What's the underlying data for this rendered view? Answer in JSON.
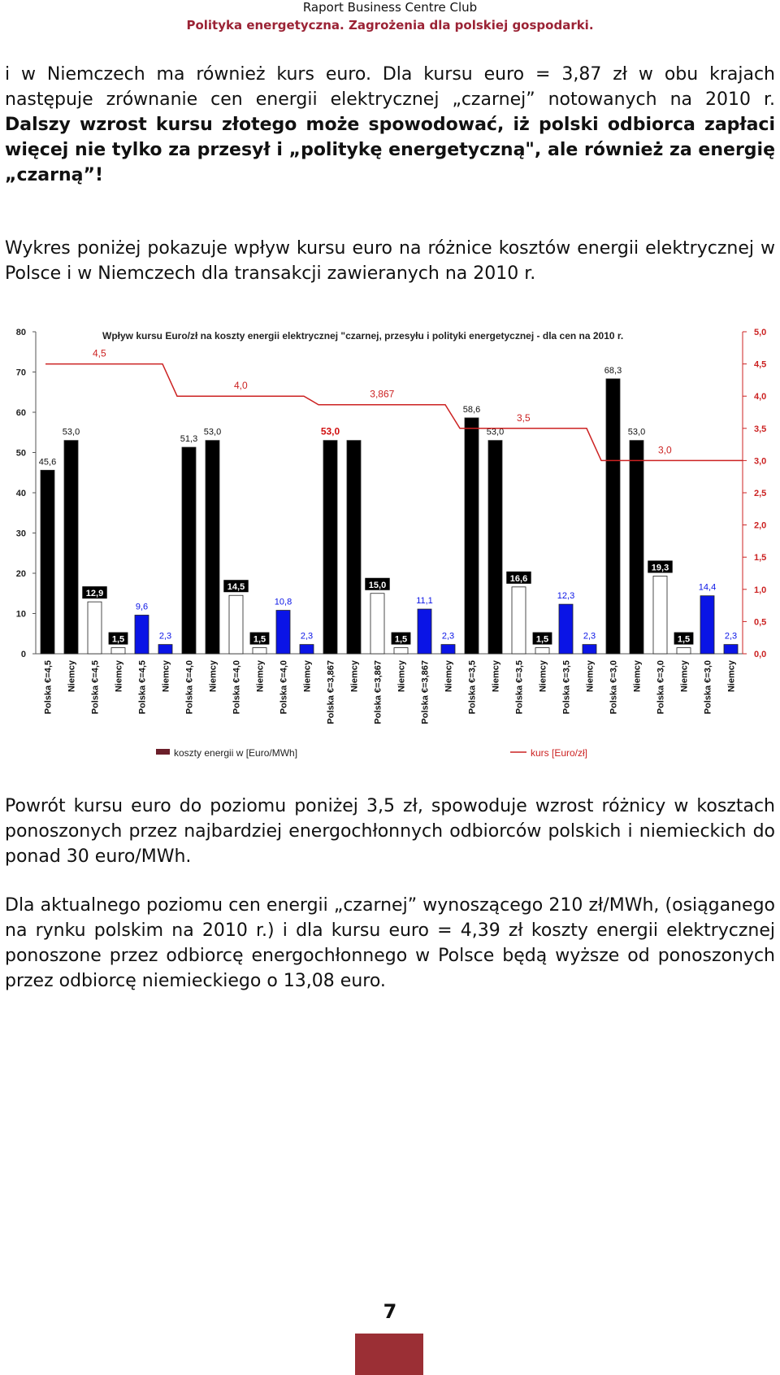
{
  "header": {
    "line1": "Raport Business Centre Club",
    "line2": "Polityka energetyczna. Zagrożenia dla polskiej gospodarki."
  },
  "paragraphs": {
    "p1_normal": "i w Niemczech ma również kurs euro. Dla kursu euro = 3,87 zł w obu krajach następuje zrównanie cen energii elektrycznej „czarnej” notowanych na 2010 r. ",
    "p1_bold": "Dalszy wzrost kursu złotego może spowodować, iż polski odbiorca zapłaci więcej nie tylko za przesył i „politykę energetyczną\", ale również za energię „czarną”!",
    "p2": "Wykres poniżej pokazuje wpływ kursu euro na różnice kosztów energii elektrycznej w Polsce i w Niemczech dla transakcji zawieranych na 2010 r.",
    "p3": "Powrót kursu euro do poziomu poniżej 3,5 zł, spowoduje wzrost różnicy w kosztach ponoszonych przez najbardziej energochłonnych odbiorców polskich i niemieckich do ponad 30 euro/MWh.",
    "p4": "Dla aktualnego poziomu cen energii „czarnej” wynoszącego 210 zł/MWh, (osiąganego na rynku polskim na 2010 r.) i dla kursu euro = 4,39 zł koszty energii elektrycznej ponoszone przez odbiorcę energochłonnego w Polsce będą wyższe od ponoszonych przez odbiorcę niemieckiego o 13,08 euro."
  },
  "page_number": "7",
  "colors": {
    "header_red": "#9b2335",
    "bar_black": "#000000",
    "bar_white": "#ffffff",
    "bar_blue": "#0a14e6",
    "line_red": "#cc2222",
    "footer_block": "#9b2f35"
  },
  "chart_data": {
    "type": "bar",
    "title": "Wpływ kursu Euro/zł na koszty energii elektrycznej \"czarnej, przesyłu i polityki energetycznej - dla cen na 2010 r.",
    "ylim": [
      0,
      80
    ],
    "yticks": [
      "0",
      "10",
      "20",
      "30",
      "40",
      "50",
      "60",
      "70",
      "80"
    ],
    "y2lim": [
      0,
      5
    ],
    "y2ticks": [
      "0,0",
      "0,5",
      "1,0",
      "1,5",
      "2,0",
      "2,5",
      "3,0",
      "3,5",
      "4,0",
      "4,5",
      "5,0"
    ],
    "categories": [
      "Polska €=4,5",
      "Niemcy",
      "Polska €=4,5",
      "Niemcy",
      "Polska €=4,5",
      "Niemcy",
      "Polska €=4,0",
      "Niemcy",
      "Polska €=4,0",
      "Niemcy",
      "Polska €=4,0",
      "Niemcy",
      "Polska €=3,867",
      "Niemcy",
      "Polska €=3,867",
      "Niemcy",
      "Polska €=3,867",
      "Niemcy",
      "Polska €=3,5",
      "Niemcy",
      "Polska €=3,5",
      "Niemcy",
      "Polska €=3,5",
      "Niemcy",
      "Polska €=3,0",
      "Niemcy",
      "Polska €=3,0",
      "Niemcy",
      "Polska €=3,0",
      "Niemcy"
    ],
    "values": [
      45.6,
      53.0,
      12.9,
      1.5,
      9.6,
      2.3,
      51.3,
      53.0,
      14.5,
      1.5,
      10.8,
      2.3,
      53.0,
      53.0,
      15.0,
      1.5,
      11.1,
      2.3,
      58.6,
      53.0,
      16.6,
      1.5,
      12.3,
      2.3,
      68.3,
      53.0,
      19.3,
      1.5,
      14.4,
      2.3
    ],
    "value_labels": [
      "45,6",
      "53,0",
      "12,9",
      "1,5",
      "9,6",
      "2,3",
      "51,3",
      "53,0",
      "14,5",
      "1,5",
      "10,8",
      "2,3",
      "53,0",
      "",
      "15,0",
      "1,5",
      "11,1",
      "2,3",
      "58,6",
      "53,0",
      "16,6",
      "1,5",
      "12,3",
      "2,3",
      "68,3",
      "53,0",
      "19,3",
      "1,5",
      "14,4",
      "2,3"
    ],
    "bar_kinds": [
      "black",
      "black",
      "white",
      "white",
      "blue",
      "blue",
      "black",
      "black",
      "white",
      "white",
      "blue",
      "blue",
      "black",
      "black",
      "white",
      "white",
      "blue",
      "blue",
      "black",
      "black",
      "white",
      "white",
      "blue",
      "blue",
      "black",
      "black",
      "white",
      "white",
      "blue",
      "blue"
    ],
    "rate_series": {
      "name": "kurs [Euro/zł]",
      "values": [
        4.5,
        4.0,
        3.867,
        3.5,
        3.0
      ],
      "labels": [
        "4,5",
        "4,0",
        "3,867",
        "3,5",
        "3,0"
      ]
    },
    "legend": {
      "bars": "koszty energii w [Euro/MWh]",
      "line": "kurs [Euro/zł]",
      "position": "bottom"
    }
  }
}
